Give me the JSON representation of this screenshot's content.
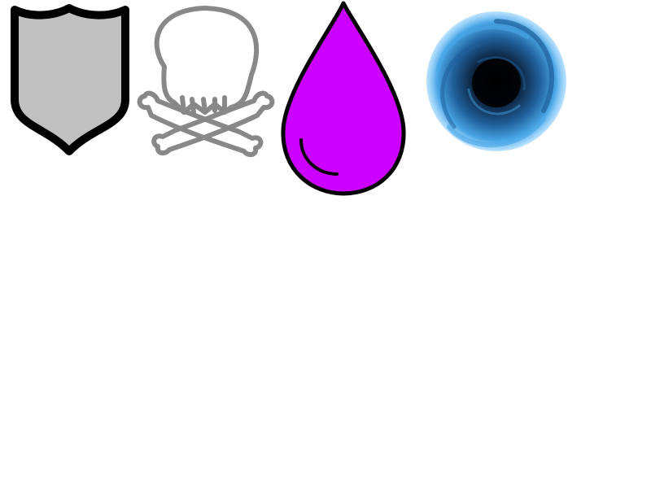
{
  "icons": [
    {
      "id": "shield",
      "name": "shield-icon",
      "fill": "#c0c0c0",
      "stroke": "#000000"
    },
    {
      "id": "skull",
      "name": "skull-crossbones-icon",
      "fill": "none",
      "stroke": "#888888"
    },
    {
      "id": "drop",
      "name": "drop-icon",
      "fill": "#cc00ff",
      "stroke": "#000000"
    },
    {
      "id": "vortex",
      "name": "vortex-icon",
      "colors": [
        "#000000",
        "#0a1a30",
        "#1f5f9a",
        "#4aa6e6",
        "#8fd0ff"
      ]
    }
  ]
}
